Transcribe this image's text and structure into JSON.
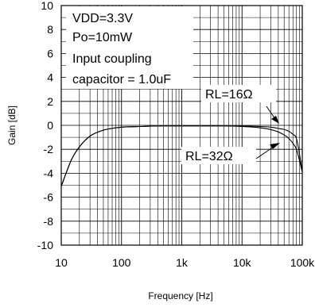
{
  "chart_data": {
    "type": "line",
    "xlabel": "Frequency [Hz]",
    "ylabel": "Gain [dB]",
    "x_scale": "log",
    "xlim": [
      10,
      100000
    ],
    "ylim": [
      -10,
      10
    ],
    "grid": true,
    "x_ticks": [
      "10",
      "100",
      "1k",
      "10k",
      "100k"
    ],
    "y_ticks": [
      "10",
      "8",
      "6",
      "4",
      "2",
      "0",
      "-2",
      "-4",
      "-6",
      "-8",
      "-10"
    ],
    "annotation_lines": [
      "VDD=3.3V",
      "Po=10mW",
      "Input coupling",
      "capacitor = 1.0uF"
    ],
    "series": [
      {
        "name": "RL=16Ω",
        "x": [
          10,
          12,
          15,
          20,
          30,
          50,
          70,
          100,
          200,
          500,
          1000,
          5000,
          10000,
          20000,
          30000,
          40000,
          50000,
          60000,
          70000,
          80000,
          100000
        ],
        "y": [
          -5.1,
          -4.0,
          -2.8,
          -1.8,
          -0.9,
          -0.4,
          -0.25,
          -0.15,
          -0.1,
          -0.05,
          -0.05,
          -0.05,
          -0.1,
          -0.2,
          -0.35,
          -0.55,
          -0.8,
          -1.1,
          -1.5,
          -2.0,
          -3.9
        ]
      },
      {
        "name": "RL=32Ω",
        "x": [
          10,
          12,
          15,
          20,
          30,
          50,
          70,
          100,
          200,
          500,
          1000,
          5000,
          10000,
          20000,
          30000,
          40000,
          50000,
          60000,
          70000,
          80000,
          100000
        ],
        "y": [
          -5.1,
          -4.0,
          -2.8,
          -1.8,
          -0.9,
          -0.4,
          -0.25,
          -0.15,
          -0.1,
          -0.05,
          -0.05,
          -0.05,
          -0.05,
          -0.1,
          -0.15,
          -0.25,
          -0.35,
          -0.5,
          -0.75,
          -1.1,
          -3.8
        ]
      }
    ],
    "labels": [
      "RL=16Ω",
      "RL=32Ω"
    ]
  }
}
